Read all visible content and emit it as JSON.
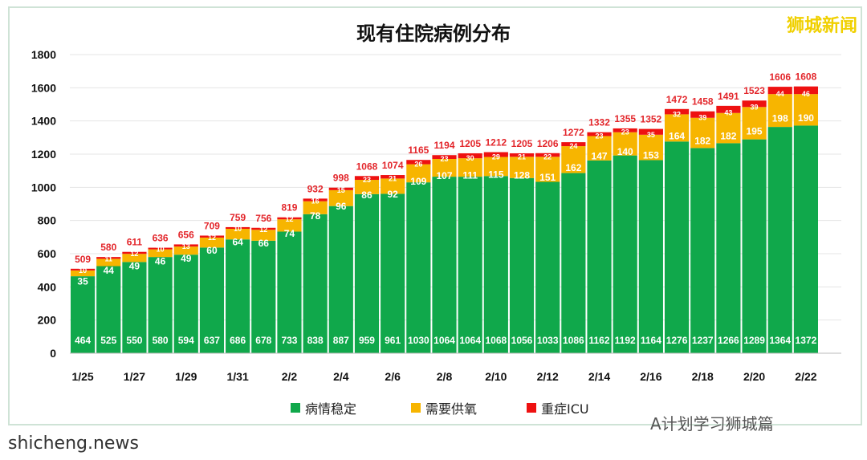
{
  "chart_data": {
    "type": "bar",
    "stacked": true,
    "title": "现有住院病例分布",
    "categories": [
      "1/25",
      "1/26",
      "1/27",
      "1/28",
      "1/29",
      "1/30",
      "1/31",
      "2/1",
      "2/2",
      "2/3",
      "2/4",
      "2/5",
      "2/6",
      "2/7",
      "2/8",
      "2/9",
      "2/10",
      "2/11",
      "2/12",
      "2/13",
      "2/14",
      "2/15",
      "2/16",
      "2/17",
      "2/18",
      "2/19",
      "2/20",
      "2/21",
      "2/22"
    ],
    "tick_labels": [
      "1/25",
      "1/27",
      "1/29",
      "1/31",
      "2/2",
      "2/4",
      "2/6",
      "2/8",
      "2/10",
      "2/12",
      "2/14",
      "2/16",
      "2/18",
      "2/20",
      "2/22"
    ],
    "series": [
      {
        "name": "病情稳定",
        "color": "#10a84b",
        "values": [
          464,
          525,
          550,
          580,
          594,
          637,
          686,
          678,
          733,
          838,
          887,
          959,
          961,
          1030,
          1064,
          1064,
          1068,
          1056,
          1033,
          1086,
          1162,
          1192,
          1164,
          1276,
          1237,
          1266,
          1289,
          1364,
          1372
        ]
      },
      {
        "name": "需要供氧",
        "color": "#f7b500",
        "values": [
          35,
          44,
          49,
          46,
          49,
          60,
          64,
          66,
          74,
          78,
          96,
          86,
          92,
          109,
          107,
          111,
          115,
          128,
          151,
          162,
          147,
          140,
          153,
          164,
          182,
          182,
          195,
          198,
          190
        ]
      },
      {
        "name": "重症ICU",
        "color": "#ee1111",
        "values": [
          10,
          11,
          12,
          10,
          13,
          12,
          10,
          12,
          12,
          16,
          15,
          23,
          21,
          26,
          23,
          30,
          29,
          21,
          22,
          24,
          23,
          23,
          35,
          32,
          39,
          43,
          39,
          44,
          46
        ]
      }
    ],
    "totals": [
      509,
      580,
      611,
      636,
      656,
      709,
      759,
      756,
      819,
      932,
      998,
      1068,
      1074,
      1165,
      1194,
      1205,
      1212,
      1205,
      1206,
      1272,
      1332,
      1355,
      1352,
      1472,
      1458,
      1491,
      1523,
      1606,
      1608
    ],
    "ylim": [
      0,
      1800
    ],
    "yticks": [
      0,
      200,
      400,
      600,
      800,
      1000,
      1200,
      1400,
      1600,
      1800
    ],
    "grid": true,
    "legend": "bottom"
  },
  "watermarks": {
    "top_right": "狮城新闻",
    "bottom_left": "shicheng.news",
    "bottom_right": "A计划学习狮城篇"
  }
}
